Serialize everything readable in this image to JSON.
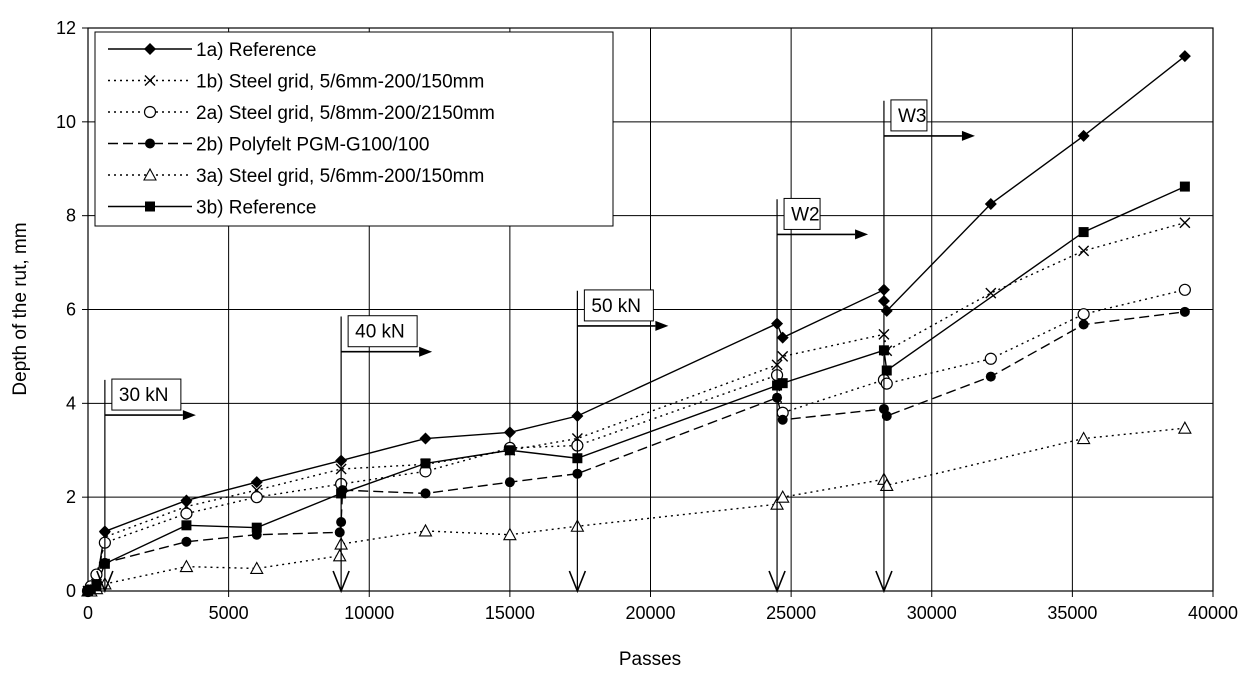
{
  "chart_data": {
    "type": "line",
    "title": "",
    "xlabel": "Passes",
    "ylabel": "Depth of the rut, mm",
    "xlim": [
      0,
      40000
    ],
    "ylim": [
      0,
      12
    ],
    "xticks": [
      0,
      5000,
      10000,
      15000,
      20000,
      25000,
      30000,
      35000,
      40000
    ],
    "yticks": [
      0,
      2,
      4,
      6,
      8,
      10,
      12
    ],
    "grid": true,
    "legend_position": "top-left",
    "series": [
      {
        "name": "1a) Reference",
        "line": "solid",
        "marker": "diamond",
        "points": [
          [
            0,
            0
          ],
          [
            100,
            0.05
          ],
          [
            300,
            0.15
          ],
          [
            600,
            1.27
          ],
          [
            3500,
            1.93
          ],
          [
            6000,
            2.32
          ],
          [
            9000,
            2.78
          ],
          [
            12000,
            3.25
          ],
          [
            15000,
            3.38
          ],
          [
            17400,
            3.73
          ],
          [
            24500,
            5.7
          ],
          [
            24700,
            5.4
          ],
          [
            28300,
            6.42
          ],
          [
            28300,
            6.18
          ],
          [
            28400,
            5.97
          ],
          [
            32100,
            8.25
          ],
          [
            35400,
            9.7
          ],
          [
            39000,
            11.4
          ]
        ]
      },
      {
        "name": "1b) Steel grid, 5/6mm-200/150mm",
        "line": "dotted",
        "marker": "x",
        "points": [
          [
            0,
            0
          ],
          [
            100,
            0.05
          ],
          [
            300,
            0.15
          ],
          [
            600,
            1.15
          ],
          [
            3500,
            1.8
          ],
          [
            6000,
            2.15
          ],
          [
            9000,
            2.6
          ],
          [
            12000,
            2.7
          ],
          [
            15000,
            3.0
          ],
          [
            17400,
            3.25
          ],
          [
            24500,
            4.82
          ],
          [
            24700,
            5.0
          ],
          [
            28300,
            5.47
          ],
          [
            28400,
            5.12
          ],
          [
            32100,
            6.35
          ],
          [
            35400,
            7.25
          ],
          [
            39000,
            7.85
          ]
        ]
      },
      {
        "name": "2a) Steel grid, 5/8mm-200/2150mm",
        "line": "dotted",
        "marker": "circle-open",
        "points": [
          [
            0,
            0
          ],
          [
            100,
            0.1
          ],
          [
            300,
            0.35
          ],
          [
            600,
            1.03
          ],
          [
            3500,
            1.65
          ],
          [
            6000,
            2.0
          ],
          [
            9000,
            2.28
          ],
          [
            12000,
            2.55
          ],
          [
            15000,
            3.05
          ],
          [
            17400,
            3.1
          ],
          [
            24500,
            4.6
          ],
          [
            24700,
            3.8
          ],
          [
            28300,
            4.5
          ],
          [
            28400,
            4.42
          ],
          [
            32100,
            4.95
          ],
          [
            35400,
            5.9
          ],
          [
            39000,
            6.42
          ]
        ]
      },
      {
        "name": "2b) Polyfelt PGM-G100/100",
        "line": "dashed",
        "marker": "circle-filled",
        "points": [
          [
            0,
            0
          ],
          [
            100,
            0.02
          ],
          [
            300,
            0.15
          ],
          [
            600,
            0.6
          ],
          [
            3500,
            1.05
          ],
          [
            6000,
            1.2
          ],
          [
            8950,
            1.25
          ],
          [
            9000,
            1.47
          ],
          [
            9050,
            2.15
          ],
          [
            12000,
            2.08
          ],
          [
            15000,
            2.32
          ],
          [
            17400,
            2.5
          ],
          [
            24500,
            4.12
          ],
          [
            24700,
            3.65
          ],
          [
            28300,
            3.88
          ],
          [
            28400,
            3.73
          ],
          [
            32100,
            4.57
          ],
          [
            35400,
            5.68
          ],
          [
            39000,
            5.95
          ]
        ]
      },
      {
        "name": "3a) Steel grid, 5/6mm-200/150mm",
        "line": "dotted",
        "marker": "triangle-open",
        "points": [
          [
            0,
            0
          ],
          [
            100,
            0.0
          ],
          [
            300,
            0.05
          ],
          [
            600,
            0.15
          ],
          [
            3500,
            0.52
          ],
          [
            6000,
            0.48
          ],
          [
            8950,
            0.75
          ],
          [
            9000,
            1.0
          ],
          [
            12000,
            1.28
          ],
          [
            15000,
            1.2
          ],
          [
            17400,
            1.38
          ],
          [
            24500,
            1.85
          ],
          [
            24700,
            2.0
          ],
          [
            28300,
            2.38
          ],
          [
            28400,
            2.25
          ],
          [
            35400,
            3.25
          ],
          [
            39000,
            3.47
          ]
        ]
      },
      {
        "name": "3b) Reference",
        "line": "solid",
        "marker": "square",
        "points": [
          [
            0,
            0
          ],
          [
            100,
            0.03
          ],
          [
            300,
            0.1
          ],
          [
            600,
            0.58
          ],
          [
            3500,
            1.4
          ],
          [
            6000,
            1.35
          ],
          [
            9000,
            2.08
          ],
          [
            12000,
            2.72
          ],
          [
            15000,
            3.0
          ],
          [
            17400,
            2.83
          ],
          [
            24500,
            4.38
          ],
          [
            24700,
            4.43
          ],
          [
            28300,
            5.13
          ],
          [
            28400,
            4.7
          ],
          [
            35400,
            7.65
          ],
          [
            39000,
            8.62
          ]
        ]
      }
    ],
    "annotations": [
      {
        "text": "30 kN",
        "x": 600,
        "y_top": 4.5,
        "label_y": 3.75
      },
      {
        "text": "40 kN",
        "x": 9000,
        "y_top": 5.85,
        "label_y": 5.1
      },
      {
        "text": "50 kN",
        "x": 17400,
        "y_top": 6.4,
        "label_y": 5.65
      },
      {
        "text": "W2",
        "x": 24500,
        "y_top": 8.35,
        "label_y": 7.6
      },
      {
        "text": "W3",
        "x": 28300,
        "y_top": 10.45,
        "label_y": 9.7
      }
    ]
  }
}
